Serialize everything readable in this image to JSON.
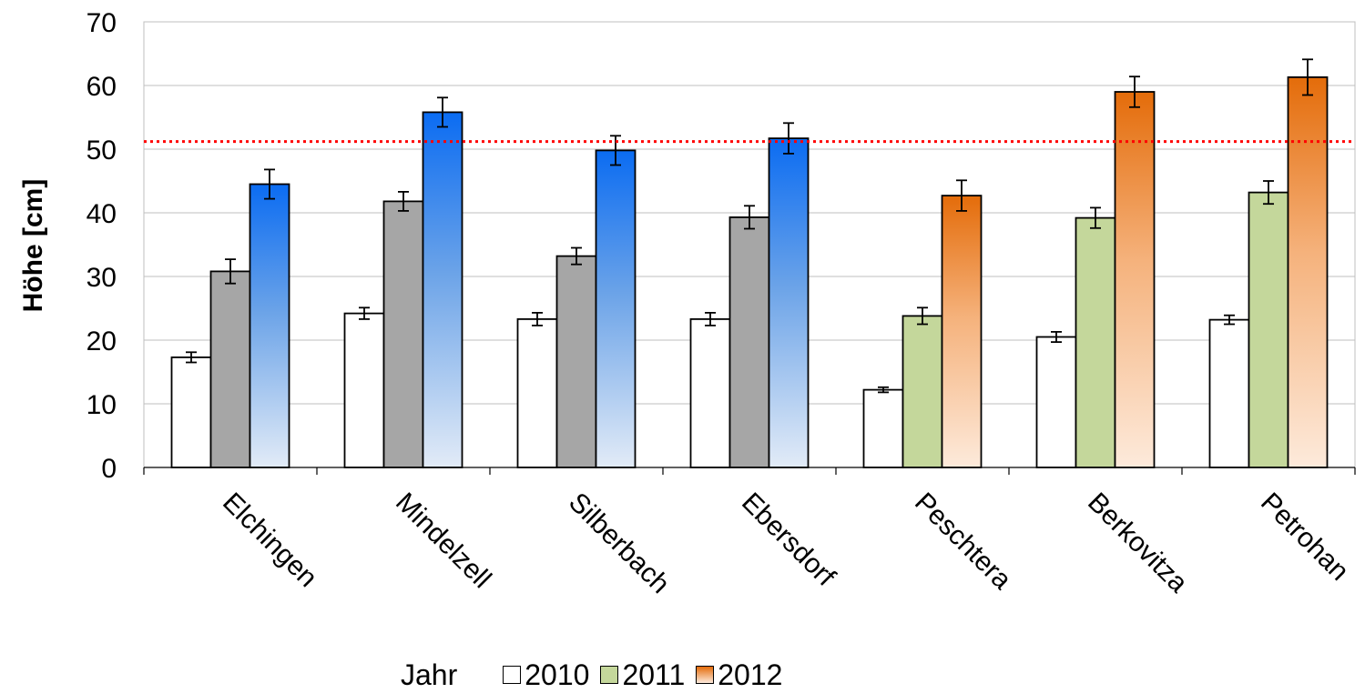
{
  "chart_data": {
    "type": "bar",
    "ylabel": "Höhe [cm]",
    "xlabel": "",
    "ylim": [
      0,
      70
    ],
    "yticks": [
      0,
      10,
      20,
      30,
      40,
      50,
      60,
      70
    ],
    "grid": true,
    "reference_line": {
      "value": 51.2,
      "color": "#ff0000",
      "style": "dotted"
    },
    "categories": [
      "Elchingen",
      "Mindelzell",
      "Silberbach",
      "Ebersdorf",
      "Peschtera",
      "Berkovitza",
      "Petrohan"
    ],
    "series": [
      {
        "name": "2010",
        "values": [
          17.3,
          24.2,
          23.3,
          23.3,
          12.2,
          20.5,
          23.2
        ],
        "errors": [
          0.8,
          0.9,
          1.0,
          1.0,
          0.4,
          0.8,
          0.7
        ]
      },
      {
        "name": "2011",
        "values": [
          30.8,
          41.8,
          33.2,
          39.3,
          23.8,
          39.2,
          43.2
        ],
        "errors": [
          1.9,
          1.5,
          1.3,
          1.8,
          1.3,
          1.6,
          1.8
        ]
      },
      {
        "name": "2012",
        "values": [
          44.5,
          55.8,
          49.8,
          51.7,
          42.7,
          59.0,
          61.3
        ],
        "errors": [
          2.3,
          2.3,
          2.3,
          2.4,
          2.4,
          2.4,
          2.8
        ]
      }
    ],
    "group_colors": {
      "german": {
        "2011": "#a6a6a6",
        "2012": "#0b6cf2"
      },
      "bulgarian": {
        "2011": "#c4d79b",
        "2012": "#e46c0a"
      }
    },
    "bulgarian_start_index": 4,
    "legend_position": "bottom"
  },
  "legend": {
    "title": "Jahr",
    "items": [
      "2010",
      "2011",
      "2012"
    ]
  }
}
